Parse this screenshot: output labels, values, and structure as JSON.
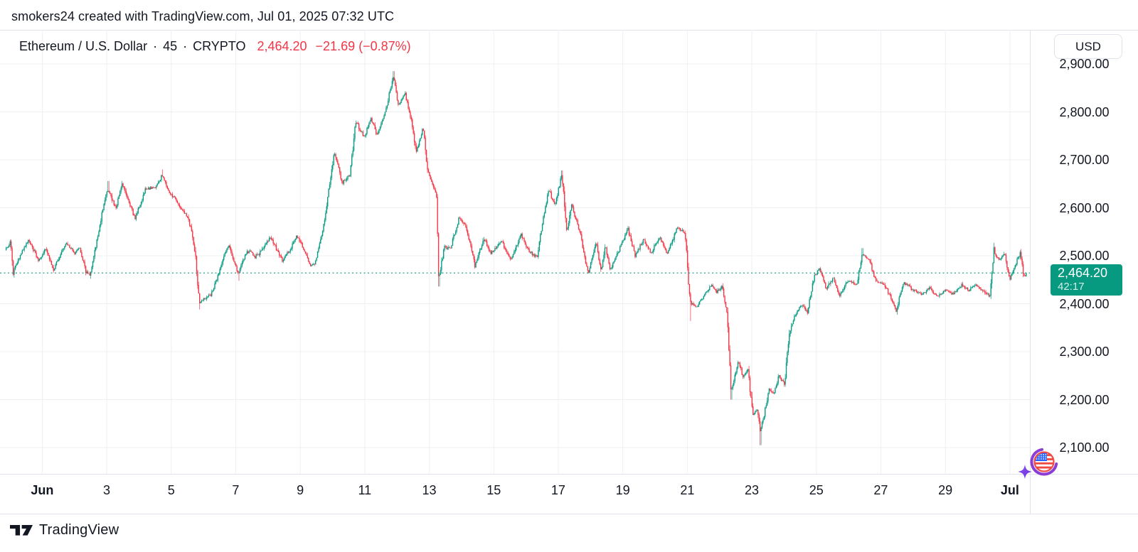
{
  "attribution": "smokers24 created with TradingView.com, Jul 01, 2025 07:32 UTC",
  "header": {
    "symbol": "Ethereum / U.S. Dollar",
    "dot1": "·",
    "interval": "45",
    "dot2": "·",
    "exchange": "CRYPTO",
    "price": "2,464.20",
    "change": "−21.69 (−0.87%)"
  },
  "currency_button": {
    "label": "USD"
  },
  "price_axis": {
    "labels": [
      "2,900.00",
      "2,800.00",
      "2,700.00",
      "2,600.00",
      "2,500.00",
      "2,400.00",
      "2,300.00",
      "2,200.00",
      "2,100.00"
    ],
    "badge": {
      "price": "2,464.20",
      "countdown": "42:17"
    }
  },
  "time_axis": {
    "labels": [
      {
        "text": "Jun",
        "t": 1,
        "bold": true
      },
      {
        "text": "3",
        "t": 3,
        "bold": false
      },
      {
        "text": "5",
        "t": 5,
        "bold": false
      },
      {
        "text": "7",
        "t": 7,
        "bold": false
      },
      {
        "text": "9",
        "t": 9,
        "bold": false
      },
      {
        "text": "11",
        "t": 11,
        "bold": false
      },
      {
        "text": "13",
        "t": 13,
        "bold": false
      },
      {
        "text": "15",
        "t": 15,
        "bold": false
      },
      {
        "text": "17",
        "t": 17,
        "bold": false
      },
      {
        "text": "19",
        "t": 19,
        "bold": false
      },
      {
        "text": "21",
        "t": 21,
        "bold": false
      },
      {
        "text": "23",
        "t": 23,
        "bold": false
      },
      {
        "text": "25",
        "t": 25,
        "bold": false
      },
      {
        "text": "27",
        "t": 27,
        "bold": false
      },
      {
        "text": "29",
        "t": 29,
        "bold": false
      },
      {
        "text": "Jul",
        "t": 31,
        "bold": true
      }
    ]
  },
  "watermark_logo": {
    "text": "TradingView"
  },
  "holiday_icon": "july-4th-us-flag-with-sparkle",
  "colors": {
    "up": "#089981",
    "down": "#F23645",
    "grid": "#EEF0F3",
    "border": "#E0E3EB",
    "text": "#131722",
    "accent_red": "#F23645",
    "badge_bg": "#089981",
    "background": "#FFFFFF"
  },
  "chart_data": {
    "type": "candlestick",
    "title": "Ethereum / U.S. Dollar · 45 · CRYPTO",
    "interval_minutes": 45,
    "x_range": [
      "May 31 00:00",
      "Jul 01 07:32 UTC"
    ],
    "ylim": [
      2075,
      2920
    ],
    "y_gridlines": [
      2900,
      2800,
      2700,
      2600,
      2500,
      2400,
      2300,
      2200,
      2100
    ],
    "grid": true,
    "current_price": 2464.2,
    "change": -21.69,
    "change_pct": -0.87,
    "countdown": "42:17",
    "anchors_note": "price path keypoints read from chart: [days since May 31 00:00 UTC, price USD]",
    "anchors": [
      [
        -0.15,
        2512
      ],
      [
        0.02,
        2528
      ],
      [
        0.1,
        2468
      ],
      [
        0.35,
        2505
      ],
      [
        0.57,
        2534
      ],
      [
        0.9,
        2490
      ],
      [
        1.1,
        2515
      ],
      [
        1.35,
        2472
      ],
      [
        1.74,
        2530
      ],
      [
        2.0,
        2505
      ],
      [
        2.15,
        2518
      ],
      [
        2.34,
        2470
      ],
      [
        2.49,
        2458
      ],
      [
        3.0,
        2640
      ],
      [
        3.29,
        2600
      ],
      [
        3.48,
        2650
      ],
      [
        3.88,
        2578
      ],
      [
        4.21,
        2640
      ],
      [
        4.5,
        2642
      ],
      [
        4.72,
        2668
      ],
      [
        4.95,
        2630
      ],
      [
        5.14,
        2618
      ],
      [
        5.3,
        2600
      ],
      [
        5.45,
        2588
      ],
      [
        5.6,
        2560
      ],
      [
        5.75,
        2500
      ],
      [
        5.87,
        2402
      ],
      [
        6.05,
        2412
      ],
      [
        6.25,
        2420
      ],
      [
        6.45,
        2458
      ],
      [
        6.65,
        2500
      ],
      [
        6.77,
        2522
      ],
      [
        7.08,
        2462
      ],
      [
        7.3,
        2505
      ],
      [
        7.45,
        2512
      ],
      [
        7.6,
        2498
      ],
      [
        7.74,
        2505
      ],
      [
        8.07,
        2538
      ],
      [
        8.3,
        2510
      ],
      [
        8.45,
        2490
      ],
      [
        8.7,
        2515
      ],
      [
        8.89,
        2542
      ],
      [
        9.1,
        2515
      ],
      [
        9.33,
        2478
      ],
      [
        9.46,
        2484
      ],
      [
        9.72,
        2560
      ],
      [
        10.05,
        2715
      ],
      [
        10.3,
        2652
      ],
      [
        10.54,
        2668
      ],
      [
        10.72,
        2780
      ],
      [
        10.98,
        2748
      ],
      [
        11.2,
        2785
      ],
      [
        11.38,
        2752
      ],
      [
        11.64,
        2800
      ],
      [
        11.89,
        2876
      ],
      [
        12.04,
        2815
      ],
      [
        12.26,
        2838
      ],
      [
        12.44,
        2782
      ],
      [
        12.59,
        2715
      ],
      [
        12.81,
        2768
      ],
      [
        12.92,
        2690
      ],
      [
        13.1,
        2648
      ],
      [
        13.23,
        2622
      ],
      [
        13.29,
        2452
      ],
      [
        13.47,
        2518
      ],
      [
        13.65,
        2515
      ],
      [
        13.92,
        2578
      ],
      [
        14.14,
        2562
      ],
      [
        14.42,
        2478
      ],
      [
        14.69,
        2538
      ],
      [
        14.91,
        2505
      ],
      [
        15.24,
        2532
      ],
      [
        15.52,
        2490
      ],
      [
        15.85,
        2545
      ],
      [
        16.05,
        2512
      ],
      [
        16.34,
        2496
      ],
      [
        16.56,
        2588
      ],
      [
        16.71,
        2638
      ],
      [
        16.89,
        2605
      ],
      [
        17.11,
        2670
      ],
      [
        17.27,
        2548
      ],
      [
        17.4,
        2608
      ],
      [
        17.66,
        2552
      ],
      [
        17.93,
        2462
      ],
      [
        18.17,
        2530
      ],
      [
        18.32,
        2470
      ],
      [
        18.46,
        2522
      ],
      [
        18.61,
        2472
      ],
      [
        18.88,
        2510
      ],
      [
        19.16,
        2556
      ],
      [
        19.38,
        2500
      ],
      [
        19.65,
        2534
      ],
      [
        19.87,
        2506
      ],
      [
        20.15,
        2540
      ],
      [
        20.37,
        2502
      ],
      [
        20.68,
        2558
      ],
      [
        20.93,
        2548
      ],
      [
        21.08,
        2402
      ],
      [
        21.3,
        2394
      ],
      [
        21.74,
        2440
      ],
      [
        21.92,
        2424
      ],
      [
        22.07,
        2438
      ],
      [
        22.23,
        2382
      ],
      [
        22.36,
        2218
      ],
      [
        22.58,
        2280
      ],
      [
        22.73,
        2248
      ],
      [
        22.89,
        2262
      ],
      [
        23.02,
        2168
      ],
      [
        23.17,
        2178
      ],
      [
        23.26,
        2132
      ],
      [
        23.39,
        2172
      ],
      [
        23.53,
        2220
      ],
      [
        23.68,
        2212
      ],
      [
        23.84,
        2250
      ],
      [
        24.01,
        2232
      ],
      [
        24.17,
        2342
      ],
      [
        24.34,
        2376
      ],
      [
        24.56,
        2400
      ],
      [
        24.72,
        2382
      ],
      [
        24.94,
        2458
      ],
      [
        25.09,
        2475
      ],
      [
        25.31,
        2432
      ],
      [
        25.53,
        2455
      ],
      [
        25.71,
        2416
      ],
      [
        25.98,
        2448
      ],
      [
        26.26,
        2440
      ],
      [
        26.42,
        2505
      ],
      [
        26.64,
        2490
      ],
      [
        26.86,
        2446
      ],
      [
        27.1,
        2440
      ],
      [
        27.3,
        2415
      ],
      [
        27.48,
        2386
      ],
      [
        27.7,
        2445
      ],
      [
        27.98,
        2430
      ],
      [
        28.25,
        2420
      ],
      [
        28.51,
        2432
      ],
      [
        28.75,
        2415
      ],
      [
        29.02,
        2430
      ],
      [
        29.24,
        2420
      ],
      [
        29.5,
        2440
      ],
      [
        29.72,
        2428
      ],
      [
        29.94,
        2440
      ],
      [
        30.16,
        2426
      ],
      [
        30.38,
        2416
      ],
      [
        30.5,
        2512
      ],
      [
        30.67,
        2488
      ],
      [
        30.83,
        2506
      ],
      [
        31.0,
        2452
      ],
      [
        31.18,
        2482
      ],
      [
        31.33,
        2508
      ],
      [
        31.44,
        2456
      ],
      [
        31.53,
        2464.2
      ]
    ],
    "wick_highs": [
      [
        3.05,
        2656
      ],
      [
        4.73,
        2680
      ],
      [
        11.9,
        2885
      ],
      [
        17.12,
        2678
      ],
      [
        26.43,
        2516
      ]
    ],
    "wick_lows": [
      [
        2.5,
        2452
      ],
      [
        5.88,
        2388
      ],
      [
        7.1,
        2448
      ],
      [
        13.3,
        2436
      ],
      [
        21.1,
        2364
      ],
      [
        22.37,
        2200
      ],
      [
        23.27,
        2105
      ],
      [
        27.5,
        2377
      ]
    ]
  }
}
